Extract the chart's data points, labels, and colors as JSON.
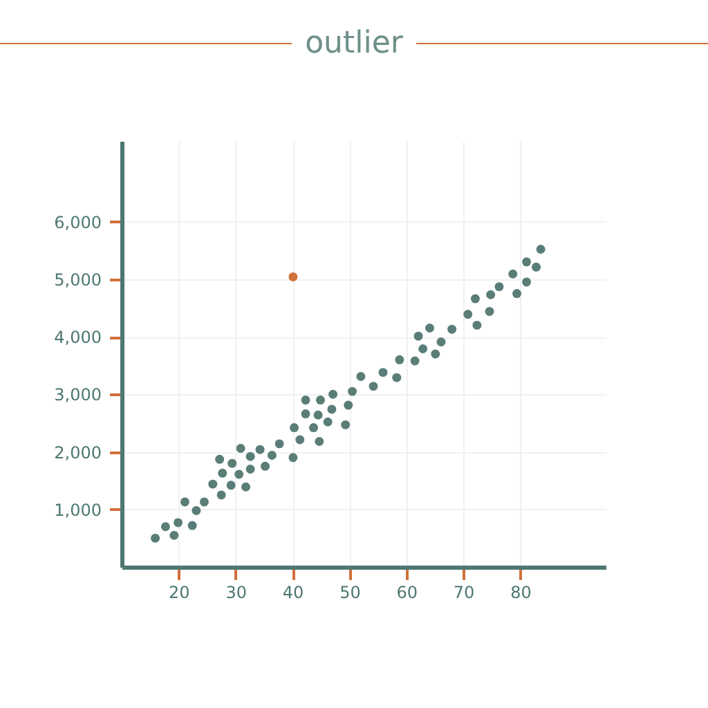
{
  "chart_data": {
    "type": "scatter",
    "title": "outlier",
    "xlim": [
      10,
      95
    ],
    "xticks": [
      20,
      30,
      40,
      50,
      60,
      70,
      80
    ],
    "ylim": [
      0,
      7400
    ],
    "yticks": [
      {
        "value": 1000,
        "label": "1,000"
      },
      {
        "value": 2000,
        "label": "2,000"
      },
      {
        "value": 3000,
        "label": "3,000"
      },
      {
        "value": 4000,
        "label": "4,000"
      },
      {
        "value": 5000,
        "label": "5,000"
      },
      {
        "value": 6000,
        "label": "6,000"
      }
    ],
    "grid": true,
    "marker": "circle",
    "series": [
      {
        "color": "#5a7d78",
        "x": [
          15.9,
          17.7,
          19.2,
          19.9,
          21.1,
          22.4,
          23.1,
          24.5,
          26.0,
          27.2,
          27.5,
          27.7,
          29.2,
          29.4,
          30.6,
          30.9,
          31.8,
          32.6,
          32.6,
          34.3,
          35.2,
          36.4,
          37.7,
          40.1,
          40.3,
          41.3,
          42.3,
          42.3,
          43.7,
          44.5,
          44.7,
          44.9,
          46.2,
          46.9,
          47.1,
          49.3,
          49.8,
          50.5,
          52.0,
          54.2,
          55.9,
          58.3,
          58.8,
          61.5,
          62.1,
          62.9,
          64.1,
          65.1,
          66.1,
          68.0,
          70.8,
          72.1,
          72.4,
          74.6,
          74.8,
          76.3,
          78.7,
          79.4,
          81.1,
          81.1,
          82.8,
          83.6
        ],
        "values": [
          500,
          700,
          550,
          770,
          1130,
          720,
          980,
          1130,
          1440,
          1870,
          1250,
          1630,
          1420,
          1800,
          1610,
          2060,
          1390,
          1700,
          1920,
          2040,
          1750,
          1940,
          2140,
          1900,
          2420,
          2210,
          2900,
          2660,
          2420,
          2640,
          2180,
          2900,
          2520,
          2740,
          3000,
          2470,
          2810,
          3050,
          3310,
          3140,
          3380,
          3290,
          3600,
          3580,
          4010,
          3790,
          4150,
          3700,
          3910,
          4130,
          4390,
          4660,
          4200,
          4440,
          4730,
          4870,
          5090,
          4750,
          5300,
          4950,
          5210,
          5520
        ]
      },
      {
        "color": "#d0703a",
        "x": [
          40.1
        ],
        "values": [
          5040
        ]
      }
    ]
  }
}
